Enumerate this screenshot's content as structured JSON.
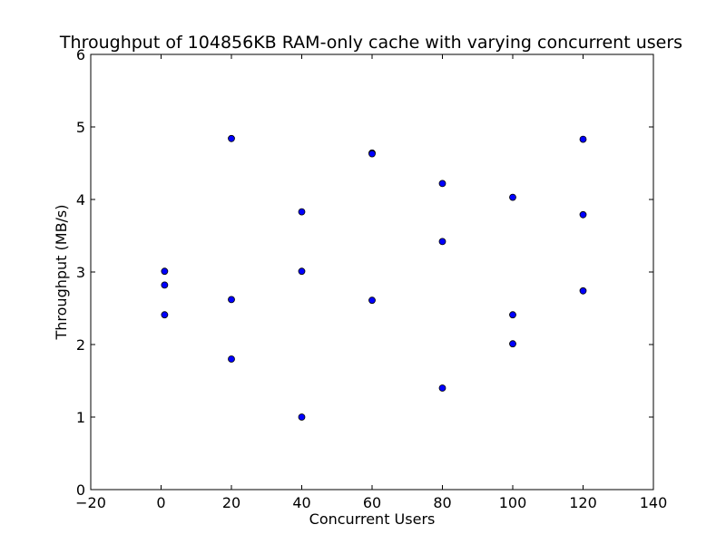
{
  "chart_data": {
    "type": "scatter",
    "title": "Throughput of 104856KB RAM-only cache with varying concurrent users",
    "xlabel": "Concurrent Users",
    "ylabel": "Throughput (MB/s)",
    "xlim": [
      -20,
      140
    ],
    "ylim": [
      0,
      6
    ],
    "xticks": [
      -20,
      0,
      20,
      40,
      60,
      80,
      100,
      120,
      140
    ],
    "yticks": [
      0,
      1,
      2,
      3,
      4,
      5,
      6
    ],
    "xtick_labels": [
      "−20",
      "0",
      "20",
      "40",
      "60",
      "80",
      "100",
      "120",
      "140"
    ],
    "ytick_labels": [
      "0",
      "1",
      "2",
      "3",
      "4",
      "5",
      "6"
    ],
    "grid": false,
    "legend": "none",
    "marker_color": "#0000ff",
    "points": [
      {
        "x": 1,
        "y": 3.01
      },
      {
        "x": 1,
        "y": 2.82
      },
      {
        "x": 1,
        "y": 2.41
      },
      {
        "x": 20,
        "y": 4.84
      },
      {
        "x": 20,
        "y": 2.62
      },
      {
        "x": 20,
        "y": 1.8
      },
      {
        "x": 40,
        "y": 3.83
      },
      {
        "x": 40,
        "y": 3.01
      },
      {
        "x": 40,
        "y": 1.0
      },
      {
        "x": 60,
        "y": 4.64
      },
      {
        "x": 60,
        "y": 4.63
      },
      {
        "x": 60,
        "y": 2.61
      },
      {
        "x": 80,
        "y": 4.22
      },
      {
        "x": 80,
        "y": 3.42
      },
      {
        "x": 80,
        "y": 1.4
      },
      {
        "x": 100,
        "y": 4.03
      },
      {
        "x": 100,
        "y": 2.41
      },
      {
        "x": 100,
        "y": 2.01
      },
      {
        "x": 120,
        "y": 4.83
      },
      {
        "x": 120,
        "y": 3.79
      },
      {
        "x": 120,
        "y": 2.74
      }
    ]
  }
}
